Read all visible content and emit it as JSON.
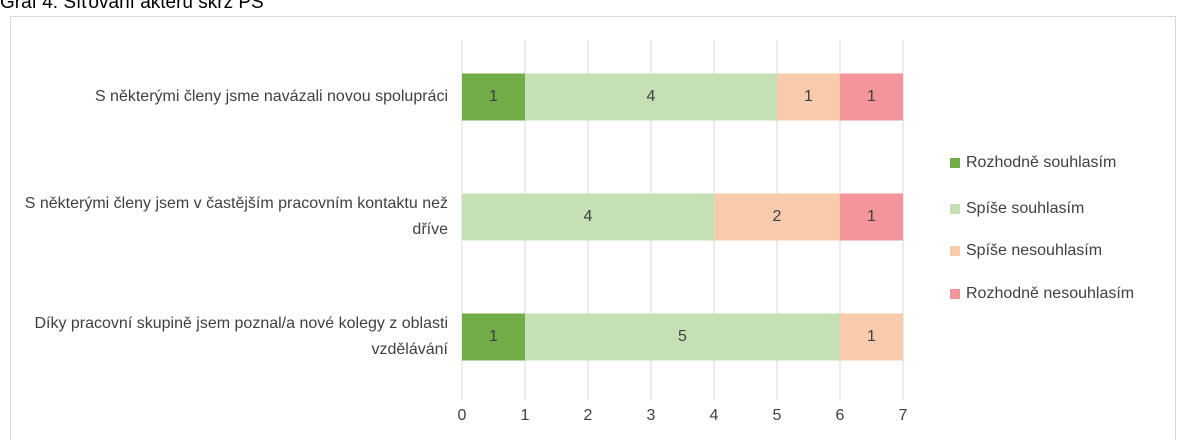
{
  "chart_data": {
    "type": "stacked_barh",
    "title": "Graf 4: Síťování aktérů skrz PS",
    "categories": [
      "S některými členy jsme navázali novou spolupráci",
      "S některými členy jsem v častějším pracovním kontaktu než dříve",
      "Díky pracovní skupině jsem poznal/a nové kolegy z oblasti vzdělávání"
    ],
    "series": [
      {
        "name": "Rozhodně souhlasím",
        "color": "#70ad47",
        "values": [
          1,
          null,
          1
        ]
      },
      {
        "name": "Spíše souhlasím",
        "color": "#c5e0b4",
        "values": [
          4,
          4,
          5
        ]
      },
      {
        "name": "Spíše nesouhlasím",
        "color": "#f8cbad",
        "values": [
          1,
          2,
          1
        ]
      },
      {
        "name": "Rozhodně nesouhlasím",
        "color": "#f4959b",
        "values": [
          1,
          1,
          null
        ]
      }
    ],
    "xlim": [
      0,
      7
    ],
    "xticks": [
      0,
      1,
      2,
      3,
      4,
      5,
      6,
      7
    ],
    "grid": true,
    "legend": "right"
  }
}
